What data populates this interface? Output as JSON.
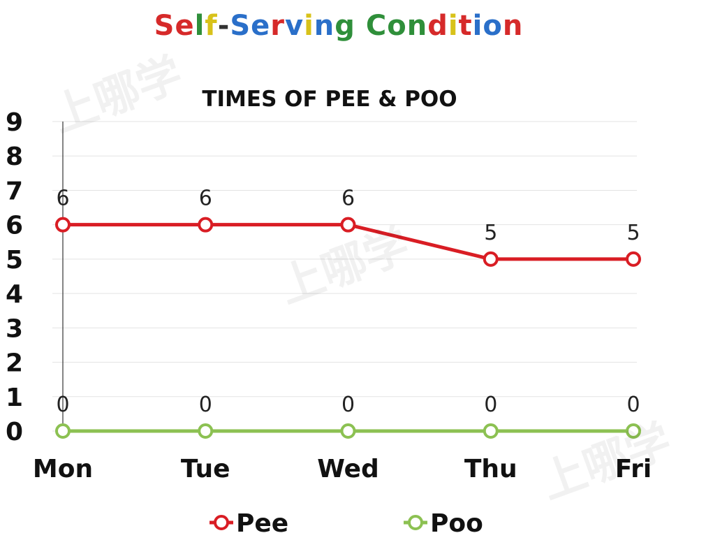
{
  "header": {
    "title_segments": [
      {
        "text": "S",
        "color": "#d62a2a"
      },
      {
        "text": "e",
        "color": "#d62a2a"
      },
      {
        "text": "l",
        "color": "#2f8f3a"
      },
      {
        "text": "f",
        "color": "#d8c21a"
      },
      {
        "text": "-",
        "color": "#333333"
      },
      {
        "text": "S",
        "color": "#2a6fc9"
      },
      {
        "text": "e",
        "color": "#2a6fc9"
      },
      {
        "text": "r",
        "color": "#d62a2a"
      },
      {
        "text": "v",
        "color": "#2a6fc9"
      },
      {
        "text": "i",
        "color": "#d8c21a"
      },
      {
        "text": "n",
        "color": "#2a6fc9"
      },
      {
        "text": "g",
        "color": "#2f8f3a"
      },
      {
        "text": " ",
        "color": "#333333"
      },
      {
        "text": "C",
        "color": "#2f8f3a"
      },
      {
        "text": "o",
        "color": "#2f8f3a"
      },
      {
        "text": "n",
        "color": "#2f8f3a"
      },
      {
        "text": "d",
        "color": "#d62a2a"
      },
      {
        "text": "i",
        "color": "#d8c21a"
      },
      {
        "text": "t",
        "color": "#d62a2a"
      },
      {
        "text": "i",
        "color": "#2a6fc9"
      },
      {
        "text": "o",
        "color": "#2a6fc9"
      },
      {
        "text": "n",
        "color": "#d62a2a"
      }
    ]
  },
  "watermark": {
    "text": "上哪学"
  },
  "chart_data": {
    "type": "line",
    "title": "TIMES OF PEE & POO",
    "categories": [
      "Mon",
      "Tue",
      "Wed",
      "Thu",
      "Fri"
    ],
    "ylim": [
      0,
      9
    ],
    "yticks": [
      "0",
      "1",
      "2",
      "3",
      "4",
      "5",
      "6",
      "7",
      "8",
      "9"
    ],
    "grid": true,
    "legend_position": "bottom",
    "series": [
      {
        "name": "Pee",
        "values": [
          6,
          6,
          6,
          5,
          5
        ],
        "color": "#d91d24"
      },
      {
        "name": "Poo",
        "values": [
          0,
          0,
          0,
          0,
          0
        ],
        "color": "#8cc152"
      }
    ]
  }
}
